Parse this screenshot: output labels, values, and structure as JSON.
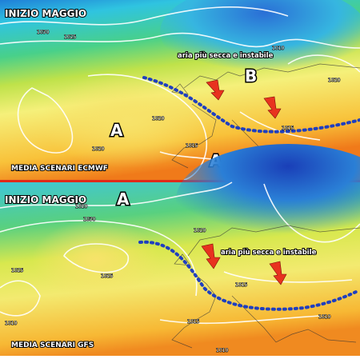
{
  "panels": [
    {
      "title": "INIZIO MAGGIO",
      "annotation": "aria più secca e instabile",
      "centers": [
        "B",
        "A",
        "A"
      ],
      "source": "MEDIA SCENARI ECMWF",
      "isobar_labels": [
        "1030",
        "1025",
        "1020",
        "1020",
        "1020",
        "1015",
        "1015",
        "1010",
        "1010"
      ]
    },
    {
      "title": "INIZIO MAGGIO",
      "annotation": "aria più secca e instabile",
      "centers": [
        "A"
      ],
      "source": "MEDIA SCENARI GFS",
      "isobar_labels": [
        "1010",
        "1020",
        "1030",
        "1025",
        "1025",
        "1020",
        "1015",
        "1015",
        "1010",
        "1010"
      ]
    }
  ]
}
